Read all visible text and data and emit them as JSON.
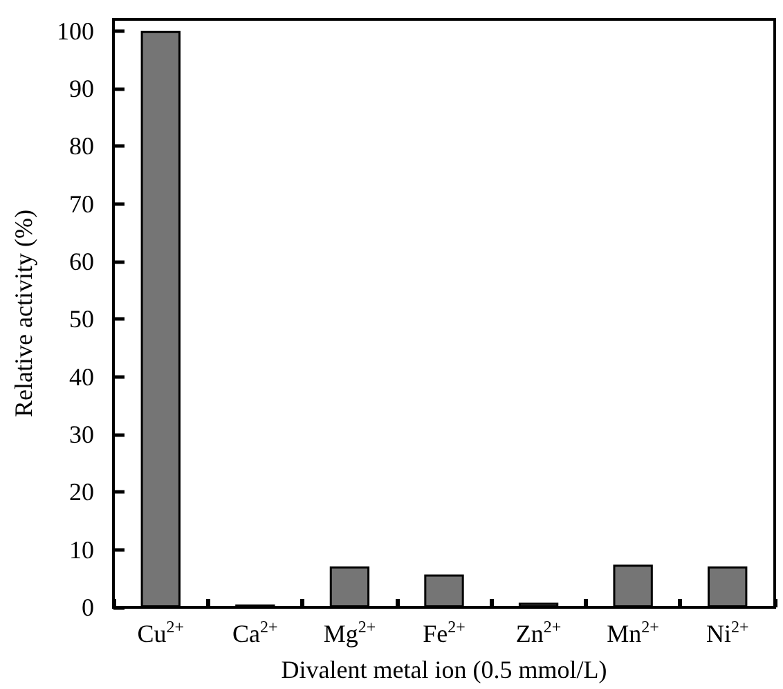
{
  "chart_data": {
    "type": "bar",
    "xlabel": "Divalent metal ion (0.5 mmol/L)",
    "ylabel": "Relative activity (%)",
    "categories": [
      "Cu$^{2+}$",
      "Ca$^{2+}$",
      "Mg$^{2+}$",
      "Fe$^{2+}$",
      "Zn$^{2+}$",
      "Mn$^{2+}$",
      "Ni$^{2+}$"
    ],
    "values": [
      100,
      0.5,
      7.1,
      5.7,
      0.8,
      7.4,
      7.1
    ],
    "color": "#757575",
    "ylim": [
      0,
      102
    ],
    "yticks": [
      0,
      10,
      20,
      30,
      40,
      50,
      60,
      70,
      80,
      90,
      100
    ]
  }
}
